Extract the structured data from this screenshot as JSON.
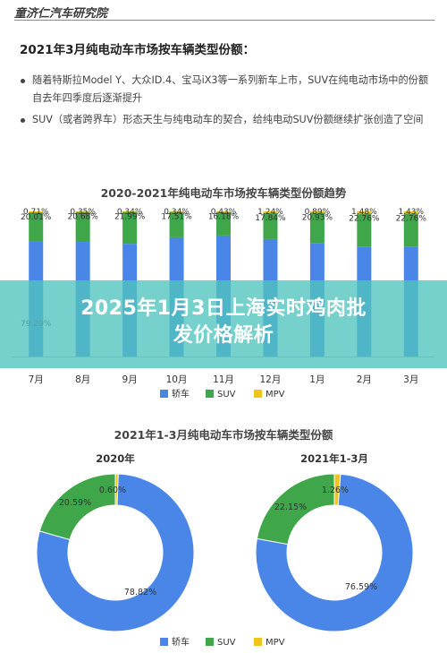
{
  "header": {
    "brand": "童济仁汽车研究院",
    "title": "2021年3月纯电动车市场按车辆类型份额：",
    "bullets": [
      "随着特斯拉Model Y、大众ID.4、宝马iX3等一系列新车上市，SUV在纯电动市场中的份额自去年四季度后逐渐提升",
      "SUV（或者跨界车）形态天生与纯电动车的契合，给纯电动SUV份额继续扩张创造了空间"
    ]
  },
  "banner": {
    "line1": "2025年1月3日上海实时鸡肉批",
    "line2": "发价格解析"
  },
  "colors": {
    "sedan": "#4a86e8",
    "suv": "#3fa64a",
    "mpv": "#f0c419"
  },
  "chart_data": [
    {
      "type": "bar",
      "stacked": true,
      "title": "2020-2021年纯电动车市场按车辆类型份额趋势",
      "categories": [
        "7月",
        "8月",
        "9月",
        "10月",
        "11月",
        "12月",
        "1月",
        "2月",
        "3月"
      ],
      "series": [
        {
          "name": "轿车",
          "values": [
            79.29,
            78.97,
            77.67,
            82.15,
            83.41,
            80.92,
            78.18,
            75.76,
            75.81
          ],
          "labels": [
            "79.29%",
            "",
            "",
            "",
            "",
            "",
            "",
            "",
            ""
          ]
        },
        {
          "name": "SUV",
          "values": [
            20.01,
            20.68,
            21.99,
            17.51,
            16.18,
            17.84,
            20.93,
            22.76,
            22.76
          ],
          "labels": [
            "20.01%",
            "20.68%",
            "21.99%",
            "17.51%",
            "16.18%",
            "17.84%",
            "20.93%",
            "22.76%",
            "22.76%"
          ]
        },
        {
          "name": "MPV",
          "values": [
            0.71,
            0.35,
            0.34,
            0.34,
            0.43,
            1.24,
            0.89,
            1.48,
            1.43
          ],
          "labels": [
            "0.71%",
            "0.35%",
            "0.34%",
            "0.34%",
            "0.43%",
            "1.24%",
            "0.89%",
            "1.48%",
            "1.43%"
          ]
        }
      ],
      "ylim": [
        0,
        100
      ],
      "legend": "bottom"
    },
    {
      "type": "pie",
      "subtype": "donut",
      "title": "2021年1-3月纯电动车市场按车辆类型份额",
      "charts": [
        {
          "name": "2020年",
          "categories": [
            "轿车",
            "SUV",
            "MPV"
          ],
          "values": [
            78.82,
            20.59,
            0.6
          ],
          "labels": [
            "78.82%",
            "20.59%",
            "0.60%"
          ]
        },
        {
          "name": "2021年1-3月",
          "categories": [
            "轿车",
            "SUV",
            "MPV"
          ],
          "values": [
            76.59,
            22.15,
            1.26
          ],
          "labels": [
            "76.59%",
            "22.15%",
            "1.26%"
          ]
        }
      ],
      "legend": "bottom"
    }
  ]
}
